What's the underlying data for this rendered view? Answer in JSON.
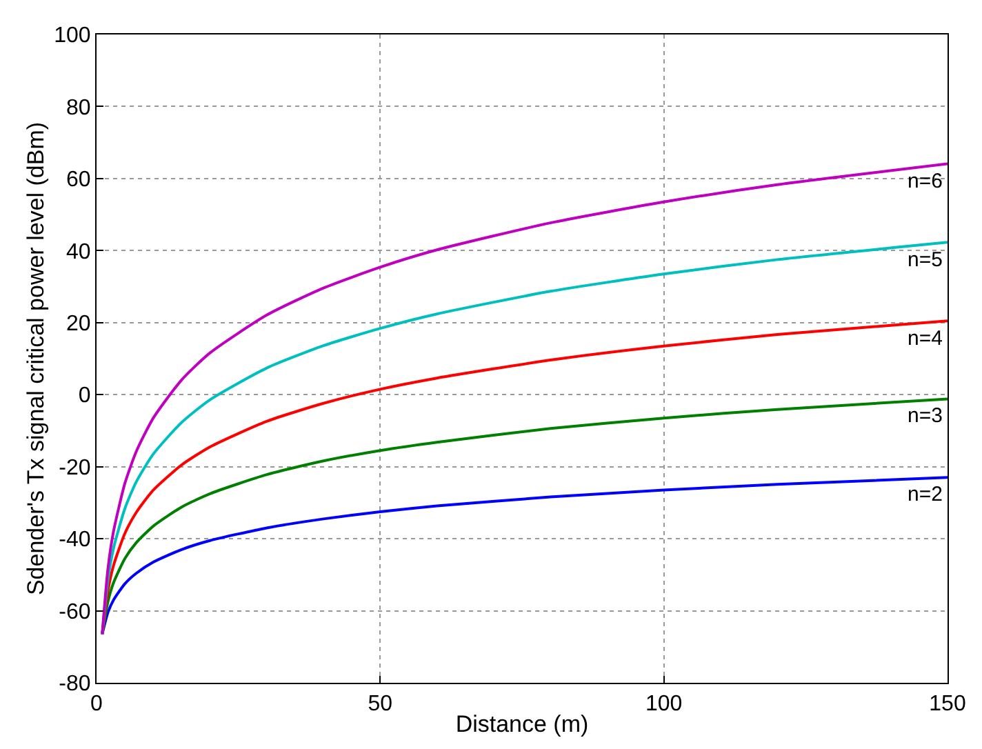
{
  "chart_data": {
    "type": "line",
    "xlabel": "Distance (m)",
    "ylabel": "Sdender's Tx signal critical power level (dBm)",
    "x": [
      1,
      2,
      3,
      5,
      7,
      10,
      15,
      20,
      30,
      40,
      50,
      60,
      80,
      100,
      120,
      150
    ],
    "xlim": [
      0,
      150
    ],
    "xticks": [
      0,
      50,
      100,
      150
    ],
    "ylim": [
      -80,
      100
    ],
    "yticks": [
      -80,
      -60,
      -40,
      -20,
      0,
      20,
      40,
      60,
      80,
      100
    ],
    "grid": true,
    "legend": false,
    "marker": "none",
    "line_style": "solid",
    "series": [
      {
        "name": "n=2",
        "color": "#0000ff",
        "values": [
          -66.5,
          -60.5,
          -57.0,
          -52.5,
          -49.6,
          -46.5,
          -43.0,
          -40.5,
          -37.0,
          -34.5,
          -32.5,
          -30.9,
          -28.4,
          -26.5,
          -24.9,
          -23.0
        ]
      },
      {
        "name": "n=3",
        "color": "#007f00",
        "values": [
          -66.5,
          -57.5,
          -52.2,
          -45.5,
          -41.1,
          -36.5,
          -31.2,
          -27.5,
          -22.2,
          -18.4,
          -15.5,
          -13.2,
          -9.4,
          -6.5,
          -4.1,
          -1.2
        ]
      },
      {
        "name": "n=4",
        "color": "#ff0000",
        "values": [
          -66.5,
          -54.5,
          -47.4,
          -38.5,
          -32.7,
          -26.5,
          -19.5,
          -14.5,
          -7.4,
          -2.4,
          1.5,
          4.6,
          9.6,
          13.5,
          16.7,
          20.5
        ]
      },
      {
        "name": "n=5",
        "color": "#00bfbf",
        "values": [
          -66.5,
          -51.4,
          -42.6,
          -31.6,
          -24.2,
          -16.5,
          -7.7,
          -1.4,
          7.4,
          13.6,
          18.4,
          22.4,
          28.7,
          33.5,
          37.5,
          42.3
        ]
      },
      {
        "name": "n=6",
        "color": "#bf00bf",
        "values": [
          -66.5,
          -48.4,
          -37.9,
          -24.6,
          -15.8,
          -6.5,
          4.1,
          11.6,
          22.1,
          29.6,
          35.4,
          40.2,
          47.7,
          53.5,
          58.3,
          64.1
        ]
      }
    ]
  }
}
